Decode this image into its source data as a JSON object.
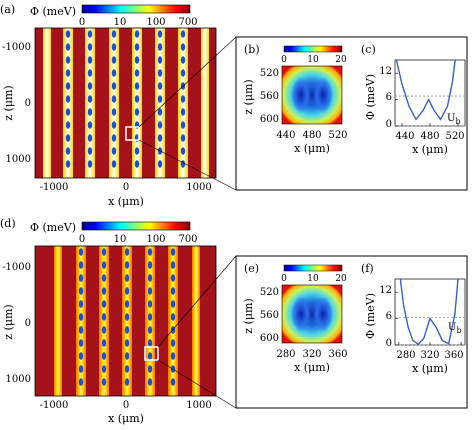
{
  "panels": {
    "a": {
      "tag": "(a)"
    },
    "b": {
      "tag": "(b)"
    },
    "c": {
      "tag": "(c)"
    },
    "d": {
      "tag": "(d)"
    },
    "e": {
      "tag": "(e)"
    },
    "f": {
      "tag": "(f)"
    }
  },
  "colorbar_main": {
    "label": "Φ (meV)",
    "ticks": [
      "0",
      "10",
      "100",
      "700"
    ]
  },
  "colorbar_inset": {
    "ticks": [
      "0",
      "10",
      "20"
    ]
  },
  "main_axes": {
    "xlabel": "x (μm)",
    "ylabel": "z (μm)",
    "xticks": [
      "-1000",
      "0",
      "1000"
    ],
    "yticks": [
      "-1000",
      "0",
      "1000"
    ]
  },
  "inset_top": {
    "xticks": [
      "440",
      "480",
      "520"
    ],
    "yticks": [
      "520",
      "560",
      "600"
    ],
    "xlabel": "x (μm)",
    "ylabel": "z (μm)"
  },
  "inset_bottom": {
    "xticks": [
      "280",
      "320",
      "360"
    ],
    "yticks": [
      "520",
      "560",
      "600"
    ],
    "xlabel": "x (μm)",
    "ylabel": "z (μm)"
  },
  "chart_data": [
    {
      "type": "line",
      "panel": "(c)",
      "x": [
        432,
        440,
        450,
        460,
        470,
        478,
        486,
        495,
        505,
        512,
        516
      ],
      "y": [
        15,
        9.5,
        4.5,
        1.5,
        3.5,
        6,
        3.5,
        1.5,
        4.5,
        10,
        15
      ],
      "reference_lines_y": [
        0,
        6.8
      ],
      "reference_label": "U_b",
      "xlabel": "x (μm)",
      "ylabel": "Φ (meV)",
      "xticks": [
        440,
        480,
        520
      ],
      "yticks": [
        0,
        6,
        12
      ],
      "xlim": [
        430,
        530
      ],
      "ylim": [
        0,
        15
      ]
    },
    {
      "type": "line",
      "panel": "(f)",
      "x": [
        282,
        286,
        292,
        298,
        305,
        312,
        320,
        328,
        336,
        344,
        352,
        356
      ],
      "y": [
        15,
        9,
        4,
        1,
        0.2,
        1.5,
        6,
        4,
        1,
        0.3,
        7,
        15
      ],
      "reference_lines_y": [
        0,
        6.3
      ],
      "reference_label": "U_b",
      "xlabel": "x (μm)",
      "ylabel": "Φ (meV)",
      "xticks": [
        280,
        320,
        360
      ],
      "yticks": [
        0,
        6,
        12
      ],
      "xlim": [
        275,
        365
      ],
      "ylim": [
        0,
        15
      ]
    }
  ]
}
